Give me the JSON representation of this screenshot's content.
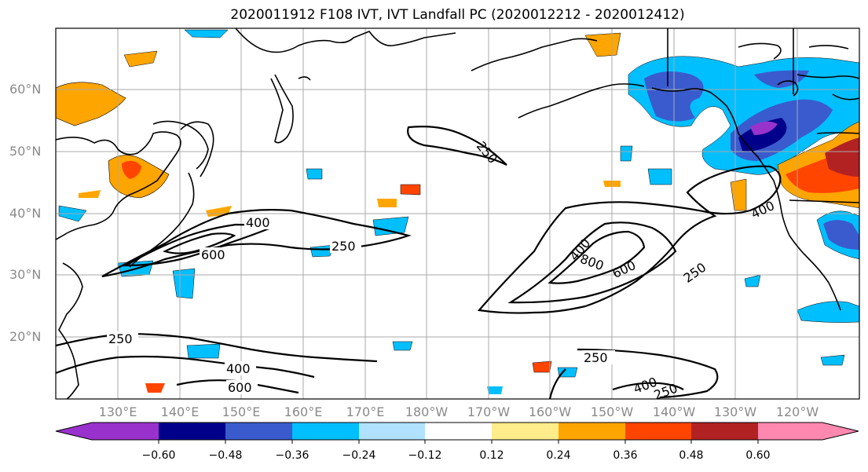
{
  "title": "2020011912 F108 IVT, IVT Landfall PC (2020012212 - 2020012412)",
  "lat_labels": [
    "60°N",
    "50°N",
    "40°N",
    "30°N",
    "20°N"
  ],
  "lon_labels": [
    "130°E",
    "140°E",
    "150°E",
    "160°E",
    "170°E",
    "180°W",
    "170°W",
    "160°W",
    "150°W",
    "140°W",
    "130°W",
    "120°W"
  ],
  "contour_labels": [
    "400",
    "600",
    "250",
    "250",
    "400",
    "800",
    "600",
    "250",
    "400",
    "250",
    "400",
    "600",
    "250",
    "400",
    "250"
  ],
  "colorbar": {
    "tick_labels": [
      "−0.60",
      "−0.48",
      "−0.36",
      "−0.24",
      "−0.12",
      "0.12",
      "0.24",
      "0.36",
      "0.48",
      "0.60"
    ],
    "colors": [
      "#9932cc",
      "#00008b",
      "#3a5bcd",
      "#00bfff",
      "#b0e2ff",
      "#ffffff",
      "#ffec8b",
      "#ffa500",
      "#ff4500",
      "#b22222",
      "#ff88b0"
    ]
  }
}
